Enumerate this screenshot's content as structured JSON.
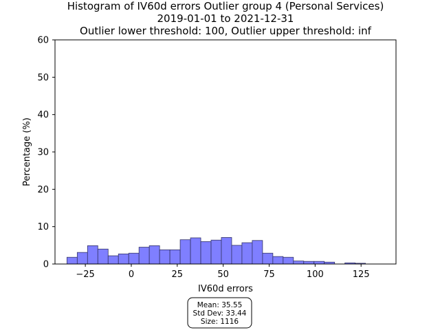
{
  "chart_data": {
    "type": "bar",
    "title_lines": [
      "Histogram of IV60d errors Outlier group 4 (Personal Services)",
      "2019-01-01 to 2021-12-31",
      "Outlier lower threshold: 100, Outlier upper threshold: inf"
    ],
    "xlabel": "IV60d errors",
    "ylabel": "Percentage (%)",
    "xlim": [
      -41.5,
      144
    ],
    "ylim": [
      0,
      60
    ],
    "xticks": [
      -25,
      0,
      25,
      50,
      75,
      100,
      125
    ],
    "xtick_labels": [
      "−25",
      "0",
      "25",
      "50",
      "75",
      "100",
      "125"
    ],
    "yticks": [
      0,
      10,
      20,
      30,
      40,
      50,
      60
    ],
    "ytick_labels": [
      "0",
      "10",
      "20",
      "30",
      "40",
      "50",
      "60"
    ],
    "bin_start": -35,
    "bin_width": 5.6,
    "values": [
      1.8,
      3.1,
      4.9,
      4.0,
      2.2,
      2.7,
      2.9,
      4.5,
      4.9,
      3.8,
      3.8,
      6.5,
      7.0,
      6.0,
      6.4,
      7.1,
      5.0,
      5.7,
      6.3,
      2.9,
      2.0,
      1.8,
      0.8,
      0.7,
      0.7,
      0.5,
      0.0,
      0.3,
      0.2
    ],
    "bar_color": "#7f7fff",
    "bar_edge_color": "#333366",
    "grid": false,
    "stats_box": {
      "lines": [
        "Mean: 35.55",
        "Std Dev: 33.44",
        "Size: 1116"
      ]
    }
  }
}
